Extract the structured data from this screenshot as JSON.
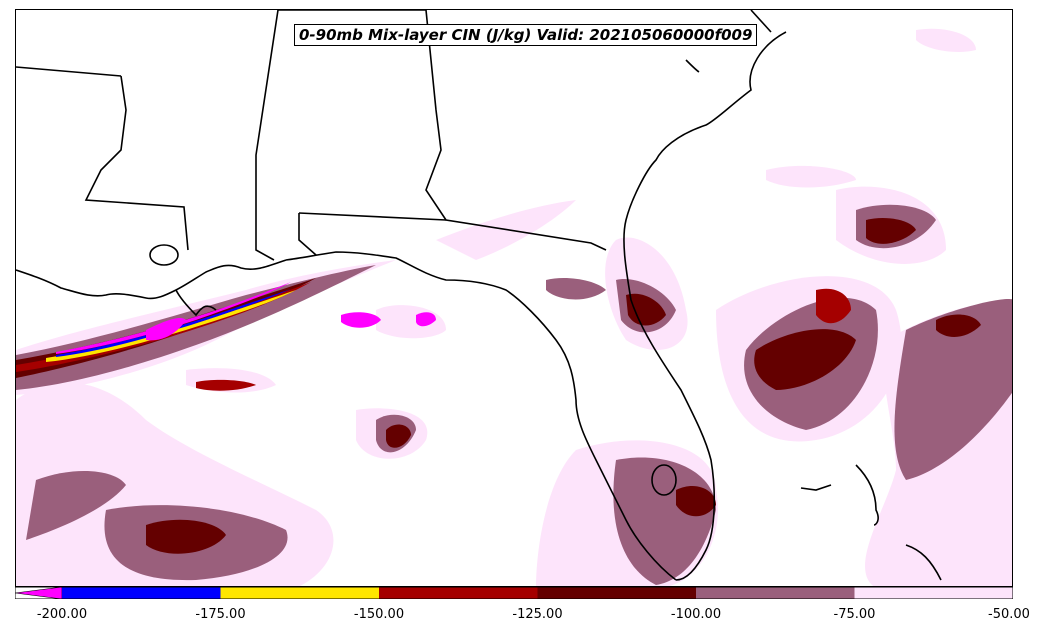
{
  "title": "0-90mb Mix-layer CIN (J/kg) Valid: 202105060000f009",
  "colorbar": {
    "tick_labels": [
      "-200.00",
      "-175.00",
      "-150.00",
      "-125.00",
      "-100.00",
      "-75.00",
      "-50.00"
    ],
    "bins": [
      {
        "range": "< -200",
        "color": "#ff00ff"
      },
      {
        "range": "-200 to -175",
        "color": "#0000ff"
      },
      {
        "range": "-175 to -150",
        "color": "#ffe600"
      },
      {
        "range": "-150 to -125",
        "color": "#a50000"
      },
      {
        "range": "-125 to -100",
        "color": "#640000"
      },
      {
        "range": "-100 to -75",
        "color": "#9a5f7c"
      },
      {
        "range": "-75 to -50",
        "color": "#fde4fb"
      }
    ]
  },
  "map": {
    "region": "Southeastern United States, Gulf of Mexico and Florida",
    "land_color": "#ffffff",
    "boundary_color": "#000000"
  }
}
